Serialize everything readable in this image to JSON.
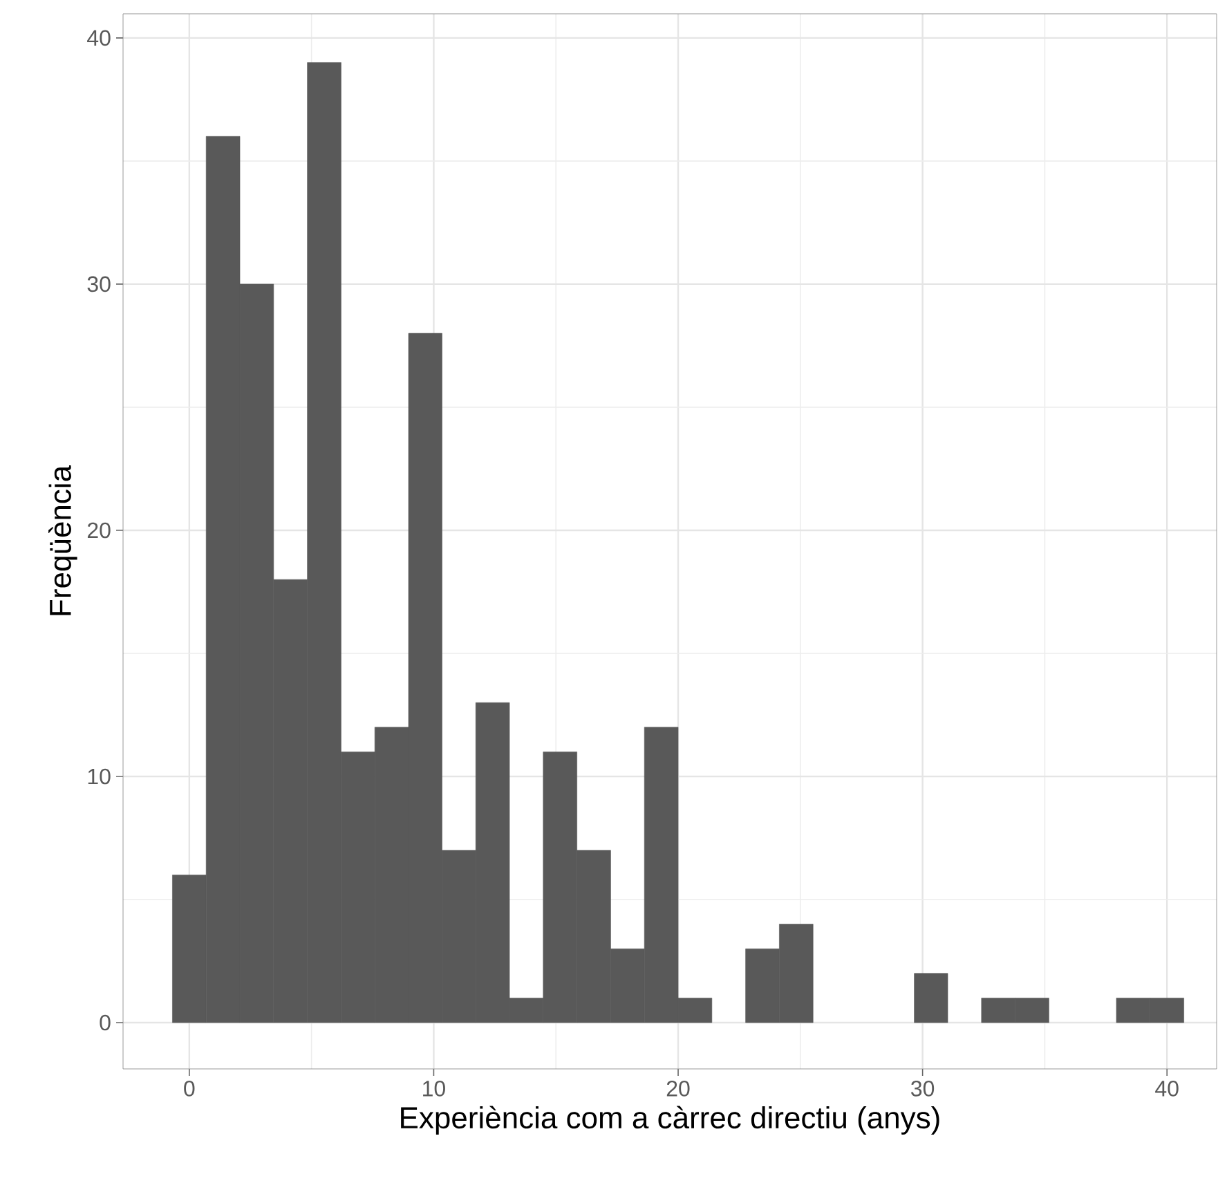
{
  "chart_data": {
    "type": "histogram",
    "xlabel": "Experiència com a càrrec directiu (anys)",
    "ylabel": "Freqüència",
    "bins": [
      -0.69,
      0.69,
      2.07,
      3.45,
      4.83,
      6.21,
      7.59,
      8.97,
      10.34,
      11.72,
      13.1,
      14.48,
      15.86,
      17.24,
      18.62,
      20.0,
      21.38,
      22.76,
      24.14,
      25.52,
      26.9,
      28.28,
      29.66,
      31.03,
      32.41,
      33.79,
      35.17,
      36.55,
      37.93,
      39.31,
      40.69
    ],
    "values": [
      6,
      36,
      30,
      18,
      39,
      11,
      12,
      28,
      7,
      13,
      1,
      11,
      7,
      3,
      12,
      1,
      0,
      3,
      4,
      0,
      0,
      0,
      2,
      0,
      1,
      1,
      0,
      0,
      1,
      1
    ],
    "color": "#595959",
    "xlim": [
      -2.71,
      42.03
    ],
    "ylim": [
      -1.88,
      40.98
    ],
    "xticks": [
      0,
      10,
      20,
      30,
      40
    ],
    "yticks": [
      0,
      10,
      20,
      30,
      40
    ],
    "grid": true
  }
}
